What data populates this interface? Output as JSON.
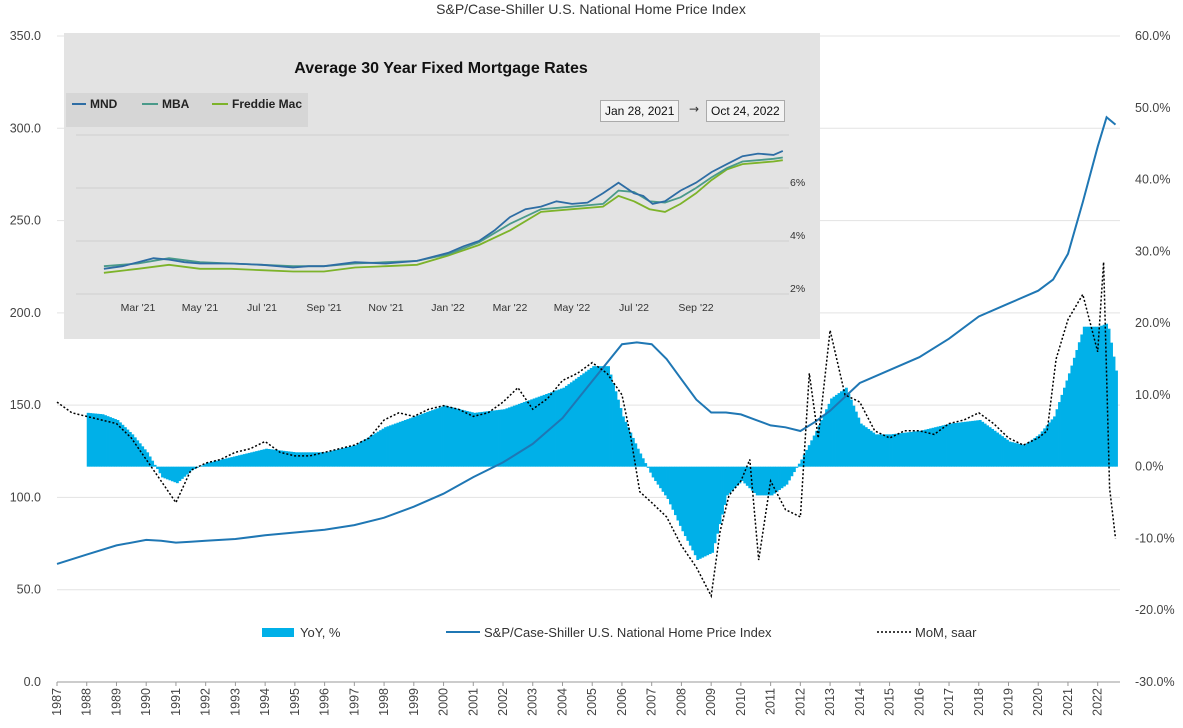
{
  "chart_data": [
    {
      "type": "bar+line",
      "title": "S&P/Case-Shiller U.S. National Home Price Index",
      "ylim_left": [
        0,
        350
      ],
      "ylim_right": [
        -30,
        60
      ],
      "y_ticks_left": [
        "0.0",
        "50.0",
        "100.0",
        "150.0",
        "200.0",
        "250.0",
        "300.0",
        "350.0"
      ],
      "y_ticks_right": [
        "-30.0%",
        "-20.0%",
        "-10.0%",
        "0.0%",
        "10.0%",
        "20.0%",
        "30.0%",
        "40.0%",
        "50.0%",
        "60.0%"
      ],
      "x_ticks": [
        "1987",
        "1988",
        "1989",
        "1990",
        "1991",
        "1992",
        "1993",
        "1994",
        "1995",
        "1996",
        "1997",
        "1998",
        "1999",
        "2000",
        "2001",
        "2002",
        "2003",
        "2004",
        "2005",
        "2006",
        "2007",
        "2008",
        "2009",
        "2010",
        "2011",
        "2012",
        "2013",
        "2014",
        "2015",
        "2016",
        "2017",
        "2018",
        "2019",
        "2020",
        "2021",
        "2022"
      ],
      "legend": [
        "YoY, %",
        "S&P/Case-Shiller U.S. National Home Price Index",
        "MoM, saar"
      ],
      "colors": {
        "yoy": "#00b0e8",
        "index": "#1f77b4",
        "mom": "#000000"
      },
      "series": [
        {
          "name": "S&P/Case-Shiller U.S. National Home Price Index",
          "axis": "left",
          "x": [
            1987.0,
            1988.0,
            1989.0,
            1990.0,
            1990.5,
            1991.0,
            1991.5,
            1992.0,
            1993.0,
            1994.0,
            1995.0,
            1996.0,
            1997.0,
            1998.0,
            1999.0,
            2000.0,
            2001.0,
            2002.0,
            2003.0,
            2004.0,
            2005.0,
            2006.0,
            2006.5,
            2007.0,
            2007.5,
            2008.0,
            2008.5,
            2009.0,
            2009.5,
            2010.0,
            2010.5,
            2011.0,
            2011.5,
            2012.0,
            2012.5,
            2013.0,
            2014.0,
            2015.0,
            2016.0,
            2017.0,
            2018.0,
            2019.0,
            2020.0,
            2020.5,
            2021.0,
            2021.5,
            2022.0,
            2022.3,
            2022.6
          ],
          "values": [
            64,
            69,
            74,
            77,
            76.5,
            75.5,
            76,
            76.5,
            77.5,
            79.5,
            81,
            82.5,
            85,
            89,
            95,
            102,
            111,
            119,
            129,
            143,
            163,
            183,
            184,
            183,
            175,
            164,
            153,
            146,
            146,
            145,
            142,
            139,
            138,
            136,
            141,
            147,
            162,
            169,
            176,
            186,
            198,
            205,
            212,
            218,
            232,
            260,
            290,
            306,
            302
          ]
        },
        {
          "name": "YoY, %",
          "axis": "right",
          "x": [
            1988.0,
            1988.5,
            1989.0,
            1989.5,
            1990.0,
            1990.5,
            1991.0,
            1991.5,
            1992.0,
            1992.5,
            1993.0,
            1993.5,
            1994.0,
            1995.0,
            1996.0,
            1997.0,
            1998.0,
            1999.0,
            2000.0,
            2001.0,
            2002.0,
            2003.0,
            2004.0,
            2005.0,
            2005.5,
            2006.0,
            2006.5,
            2007.0,
            2007.5,
            2008.0,
            2008.5,
            2009.0,
            2009.5,
            2010.0,
            2010.5,
            2011.0,
            2011.5,
            2012.0,
            2012.5,
            2013.0,
            2013.5,
            2014.0,
            2014.5,
            2015.0,
            2016.0,
            2017.0,
            2018.0,
            2018.5,
            2019.0,
            2019.5,
            2020.0,
            2020.5,
            2021.0,
            2021.5,
            2022.0,
            2022.3,
            2022.6
          ],
          "values": [
            7.5,
            7.3,
            6.5,
            4.5,
            2.0,
            -1.5,
            -2.3,
            -0.5,
            0.5,
            1.0,
            1.5,
            2.0,
            2.5,
            2.0,
            2.0,
            3.0,
            5.5,
            7.0,
            8.5,
            7.5,
            8.0,
            9.5,
            11.0,
            14.0,
            14.0,
            7.0,
            2.5,
            -1.5,
            -4.5,
            -9.0,
            -13.0,
            -12.0,
            -4.0,
            -2.0,
            -4.0,
            -4.0,
            -2.5,
            1.0,
            5.0,
            9.5,
            11.0,
            6.0,
            4.5,
            4.5,
            5.0,
            6.0,
            6.5,
            5.0,
            3.5,
            3.0,
            4.5,
            7.0,
            13.0,
            19.5,
            19.5,
            20.0,
            13.0
          ]
        },
        {
          "name": "MoM, saar",
          "axis": "right",
          "x": [
            1987.0,
            1987.5,
            1988.0,
            1988.5,
            1989.0,
            1989.5,
            1990.0,
            1990.5,
            1991.0,
            1991.5,
            1992.0,
            1992.5,
            1993.0,
            1993.5,
            1994.0,
            1994.5,
            1995.0,
            1995.5,
            1996.0,
            1996.5,
            1997.0,
            1997.5,
            1998.0,
            1998.5,
            1999.0,
            1999.5,
            2000.0,
            2000.5,
            2001.0,
            2001.5,
            2002.0,
            2002.5,
            2003.0,
            2003.5,
            2004.0,
            2004.5,
            2005.0,
            2005.5,
            2006.0,
            2006.3,
            2006.6,
            2007.0,
            2007.5,
            2008.0,
            2008.5,
            2009.0,
            2009.3,
            2009.6,
            2010.0,
            2010.3,
            2010.6,
            2011.0,
            2011.5,
            2012.0,
            2012.3,
            2012.6,
            2013.0,
            2013.5,
            2014.0,
            2014.5,
            2015.0,
            2015.5,
            2016.0,
            2016.5,
            2017.0,
            2017.5,
            2018.0,
            2018.5,
            2019.0,
            2019.5,
            2020.0,
            2020.3,
            2020.6,
            2021.0,
            2021.5,
            2022.0,
            2022.2,
            2022.4,
            2022.6
          ],
          "values": [
            9.0,
            7.5,
            7.0,
            6.5,
            6.0,
            4.0,
            1.0,
            -2.0,
            -5.0,
            -0.5,
            0.5,
            1.0,
            2.0,
            2.5,
            3.5,
            2.0,
            1.5,
            1.5,
            2.0,
            2.5,
            3.0,
            4.0,
            6.5,
            7.5,
            7.0,
            8.0,
            8.5,
            8.0,
            7.0,
            7.5,
            9.0,
            11.0,
            8.0,
            9.5,
            12.0,
            13.0,
            14.5,
            13.0,
            10.0,
            4.0,
            -3.5,
            -5.0,
            -7.0,
            -11.0,
            -14.0,
            -18.0,
            -9.0,
            -4.0,
            -2.0,
            1.0,
            -13.0,
            -2.0,
            -6.0,
            -7.0,
            13.0,
            4.0,
            19.0,
            10.0,
            9.0,
            5.0,
            4.0,
            5.0,
            5.0,
            4.5,
            6.0,
            6.5,
            7.5,
            6.0,
            4.0,
            3.0,
            4.0,
            5.0,
            15.0,
            20.5,
            24.0,
            16.0,
            28.5,
            -3.0,
            -10.0
          ]
        }
      ]
    },
    {
      "type": "line",
      "title": "Average 30 Year Fixed Mortgage Rates",
      "range_start": "Jan 28, 2021",
      "range_end": "Oct 24, 2022",
      "range_arrow": "→",
      "legend": [
        "MND",
        "MBA",
        "Freddie Mac"
      ],
      "colors": {
        "MND": "#2e6da4",
        "MBA": "#4a9a8a",
        "Freddie Mac": "#7db32a"
      },
      "x_ticks": [
        "Mar '21",
        "May '21",
        "Jul '21",
        "Sep '21",
        "Nov '21",
        "Jan '22",
        "Mar '22",
        "May '22",
        "Jul '22",
        "Sep '22"
      ],
      "y_ticks": [
        "2%",
        "4%",
        "6%"
      ],
      "ylim": [
        2,
        8
      ],
      "x_months": "months since Jan 2021",
      "series": [
        {
          "name": "MND",
          "x": [
            0.9,
            1.5,
            2.0,
            2.5,
            3.0,
            3.5,
            4.0,
            5.0,
            6.0,
            7.0,
            7.5,
            8.0,
            9.0,
            10.0,
            11.0,
            12.0,
            12.5,
            13.0,
            13.5,
            14.0,
            14.5,
            15.0,
            15.5,
            16.0,
            16.5,
            17.0,
            17.5,
            18.0,
            18.3,
            18.6,
            19.0,
            19.5,
            20.0,
            20.5,
            21.0,
            21.5,
            22.0,
            22.5,
            22.8
          ],
          "values": [
            2.95,
            3.05,
            3.2,
            3.35,
            3.3,
            3.2,
            3.15,
            3.15,
            3.1,
            3.0,
            3.05,
            3.05,
            3.2,
            3.15,
            3.25,
            3.55,
            3.8,
            4.0,
            4.4,
            4.9,
            5.2,
            5.3,
            5.5,
            5.4,
            5.45,
            5.8,
            6.2,
            5.8,
            5.7,
            5.4,
            5.5,
            5.9,
            6.2,
            6.6,
            6.9,
            7.2,
            7.3,
            7.25,
            7.4
          ]
        },
        {
          "name": "MBA",
          "x": [
            0.9,
            2.0,
            3.0,
            4.0,
            5.0,
            6.0,
            7.0,
            8.0,
            9.0,
            10.0,
            11.0,
            12.0,
            13.0,
            14.0,
            15.0,
            16.0,
            17.0,
            17.5,
            18.0,
            18.5,
            19.0,
            19.5,
            20.0,
            20.5,
            21.0,
            21.5,
            22.0,
            22.5,
            22.8
          ],
          "values": [
            3.05,
            3.15,
            3.35,
            3.2,
            3.15,
            3.1,
            3.05,
            3.05,
            3.15,
            3.2,
            3.25,
            3.5,
            3.95,
            4.65,
            5.2,
            5.3,
            5.4,
            5.9,
            5.85,
            5.5,
            5.45,
            5.65,
            6.0,
            6.4,
            6.75,
            7.0,
            7.05,
            7.1,
            7.15
          ]
        },
        {
          "name": "Freddie Mac",
          "x": [
            0.9,
            2.0,
            3.0,
            4.0,
            5.0,
            6.0,
            7.0,
            8.0,
            9.0,
            10.0,
            11.0,
            12.0,
            13.0,
            14.0,
            15.0,
            16.0,
            17.0,
            17.5,
            18.0,
            18.5,
            19.0,
            19.5,
            20.0,
            20.5,
            21.0,
            21.5,
            22.0,
            22.5,
            22.8
          ],
          "values": [
            2.8,
            2.95,
            3.1,
            2.95,
            2.95,
            2.9,
            2.85,
            2.85,
            3.0,
            3.05,
            3.1,
            3.45,
            3.85,
            4.4,
            5.1,
            5.2,
            5.3,
            5.7,
            5.5,
            5.2,
            5.1,
            5.4,
            5.8,
            6.3,
            6.7,
            6.9,
            6.95,
            7.0,
            7.05
          ]
        }
      ]
    }
  ]
}
